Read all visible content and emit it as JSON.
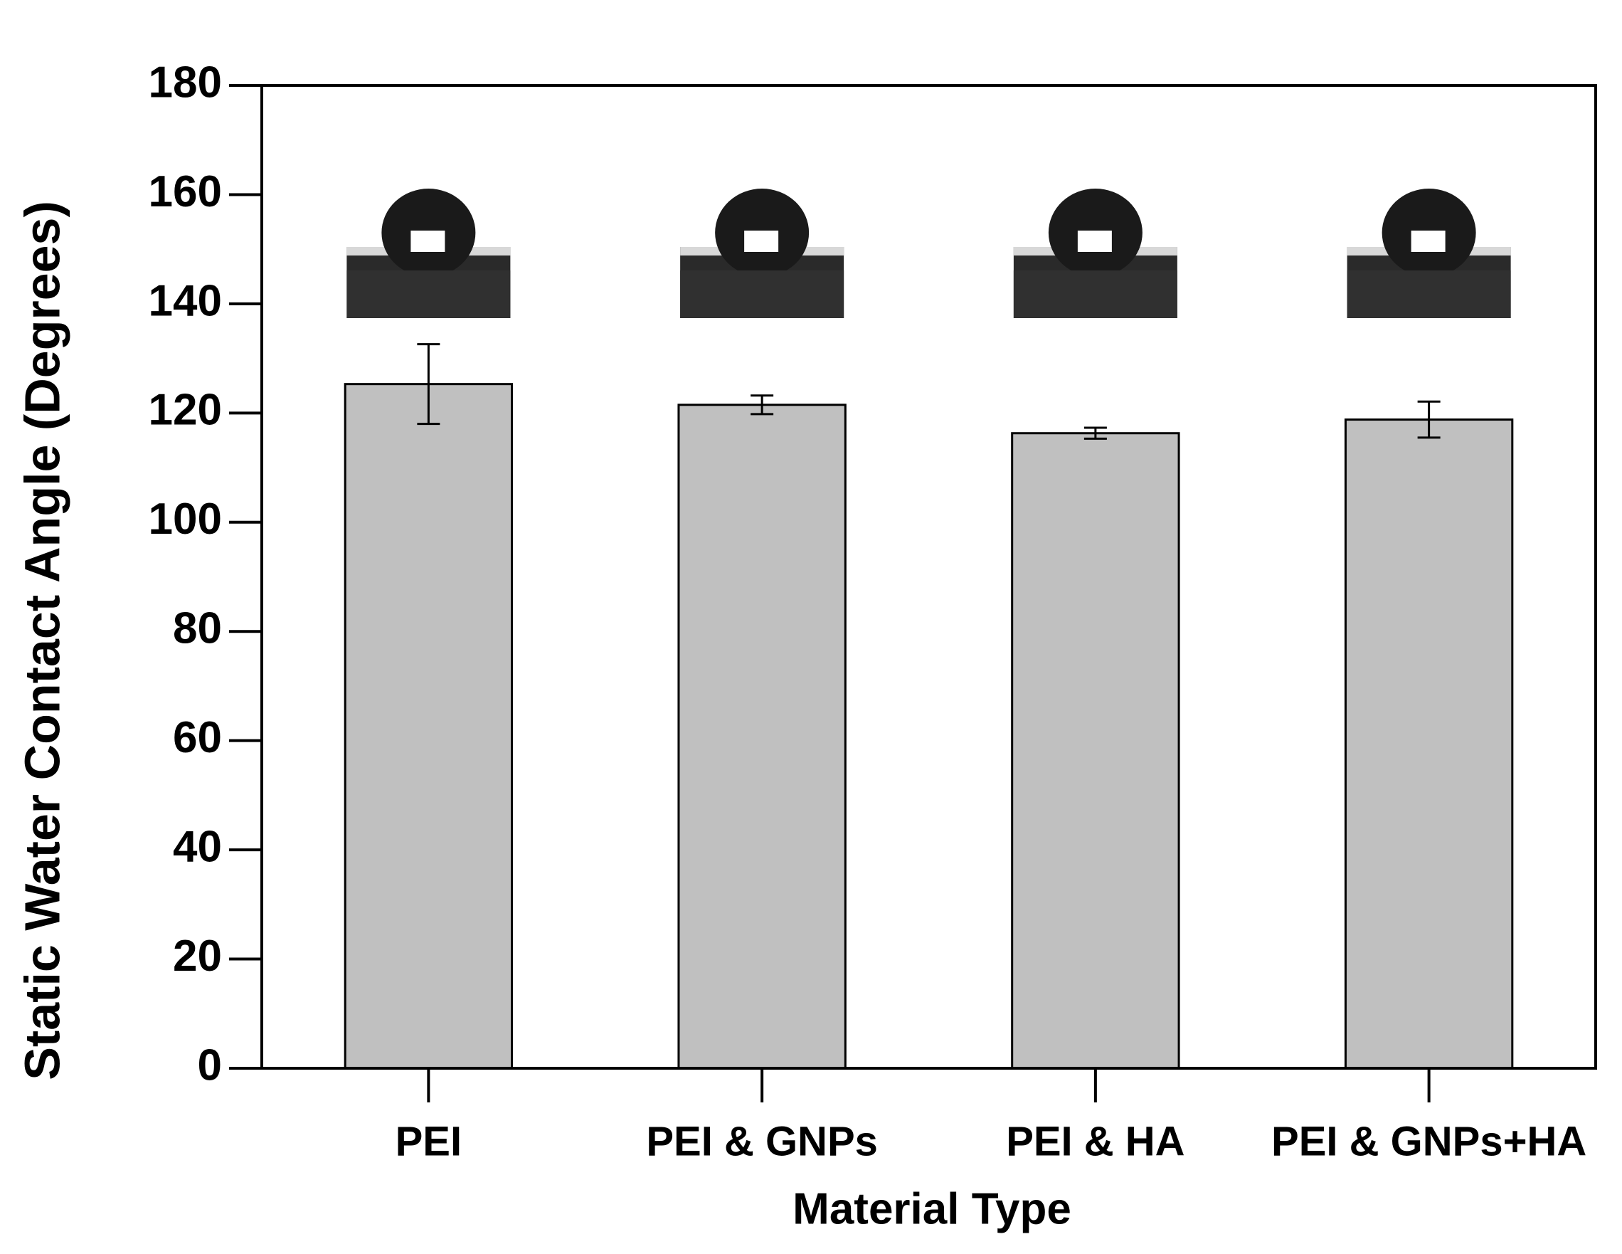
{
  "chart_data": {
    "type": "bar",
    "y_label": "Static Water Contact Angle (Degrees)",
    "x_label": "Material Type",
    "categories": [
      "PEI",
      "PEI & GNPs",
      "PEI & HA",
      "PEI & GNPs+HA"
    ],
    "values": [
      125.3,
      121.5,
      116.3,
      118.8
    ],
    "errors": [
      7.3,
      1.7,
      1.0,
      3.3
    ],
    "color": "#c0c0c0",
    "ylim": [
      0,
      180
    ],
    "yticks": [
      0,
      20,
      40,
      60,
      80,
      100,
      120,
      140,
      160,
      180
    ]
  }
}
